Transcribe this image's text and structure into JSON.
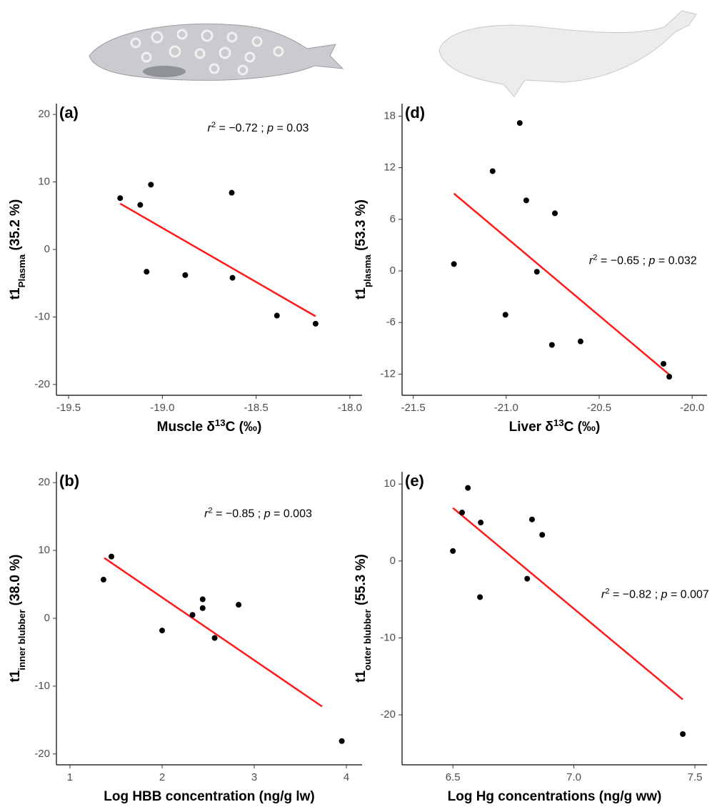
{
  "chart_data": [
    {
      "type": "scatter",
      "panel_label": "(a)",
      "x": [
        -19.225,
        -19.118,
        -19.061,
        -19.084,
        -18.878,
        -18.63,
        -18.626,
        -18.389,
        -18.183
      ],
      "series": [
        {
          "color": "#000000",
          "values": [
            7.6,
            6.6,
            9.6,
            -3.3,
            -3.8,
            8.4,
            -4.2,
            -9.8,
            -11.0
          ]
        }
      ],
      "fit": {
        "x": [
          -19.225,
          -18.183
        ],
        "y": [
          6.8,
          -9.9
        ],
        "color": "#ff1a1a"
      },
      "xlim": [
        -19.565,
        -17.935
      ],
      "ylim": [
        -21.6,
        21.6
      ],
      "xticks": [
        -19.5,
        {
          "value": -19,
          "label": "-19.0"
        },
        -18.5,
        {
          "value": -18,
          "label": "-18.0"
        }
      ],
      "yticks": [
        -20,
        -10,
        0,
        10,
        20
      ],
      "x_label": [
        {
          "text": "Muscle δ",
          "style": "normal"
        },
        {
          "text": "13",
          "style": "super"
        },
        {
          "text": "C (‰)",
          "style": "normal"
        }
      ],
      "y_label": [
        {
          "text": "t1",
          "style": "normal"
        },
        {
          "text": "Plasma",
          "style": "sub"
        },
        {
          "text": " (35.2 %)",
          "style": "normal"
        }
      ],
      "annotation": [
        {
          "text": "r",
          "style": "italic"
        },
        {
          "text": "2",
          "style": "super"
        },
        {
          "text": " = −0.72  ;  ",
          "style": "normal"
        },
        {
          "text": "p",
          "style": "italic"
        },
        {
          "text": " = 0.03",
          "style": "normal"
        }
      ]
    },
    {
      "type": "scatter",
      "panel_label": "(d)",
      "x": [
        -21.281,
        -21.073,
        -20.927,
        -20.892,
        -20.738,
        -20.835,
        -21.004,
        -20.754,
        -20.6,
        -20.154,
        -20.123
      ],
      "series": [
        {
          "color": "#000000",
          "values": [
            0.8,
            11.6,
            17.2,
            8.2,
            6.7,
            -0.1,
            -5.1,
            -8.6,
            -8.2,
            -10.8,
            -12.3
          ]
        }
      ],
      "fit": {
        "x": [
          -21.281,
          -20.115
        ],
        "y": [
          9.0,
          -12.2
        ],
        "color": "#ff1a1a"
      },
      "xlim": [
        -21.56,
        -19.92
      ],
      "ylim": [
        -14.46,
        19.45
      ],
      "xticks": [
        -21.5,
        {
          "value": -21,
          "label": "-21.0"
        },
        -20.5,
        {
          "value": -20,
          "label": "-20.0"
        }
      ],
      "yticks": [
        -12,
        -6,
        0,
        6,
        12,
        18
      ],
      "x_label": [
        {
          "text": "Liver δ",
          "style": "normal"
        },
        {
          "text": "13",
          "style": "super"
        },
        {
          "text": "C (‰)",
          "style": "normal"
        }
      ],
      "y_label": [
        {
          "text": "t1",
          "style": "normal"
        },
        {
          "text": "plasma",
          "style": "sub"
        },
        {
          "text": " (53.3 %)",
          "style": "normal"
        }
      ],
      "annotation": [
        {
          "text": "r",
          "style": "italic"
        },
        {
          "text": "2",
          "style": "super"
        },
        {
          "text": " = −0.65  ;  ",
          "style": "normal"
        },
        {
          "text": "p",
          "style": "italic"
        },
        {
          "text": " = 0.032",
          "style": "normal"
        }
      ]
    },
    {
      "type": "scatter",
      "panel_label": "(b)",
      "x": [
        1.364,
        1.45,
        2.0,
        2.33,
        2.44,
        2.44,
        2.57,
        2.83,
        3.95
      ],
      "series": [
        {
          "color": "#000000",
          "values": [
            5.7,
            9.1,
            -1.8,
            0.5,
            2.8,
            1.5,
            -2.9,
            2.0,
            -18.1
          ]
        }
      ],
      "fit": {
        "x": [
          1.372,
          3.736
        ],
        "y": [
          8.9,
          -13.0
        ],
        "color": "#ff1a1a"
      },
      "xlim": [
        0.853,
        4.17
      ],
      "ylim": [
        -21.6,
        21.6
      ],
      "xticks": [
        1,
        2,
        3,
        4
      ],
      "yticks": [
        -20,
        -10,
        0,
        10,
        20
      ],
      "x_label": [
        {
          "text": "Log HBB concentration (ng/g lw)",
          "style": "normal"
        }
      ],
      "y_label": [
        {
          "text": "t1",
          "style": "normal"
        },
        {
          "text": "inner blubber",
          "style": "sub"
        },
        {
          "text": " (38.0 %)",
          "style": "normal"
        }
      ],
      "annotation": [
        {
          "text": "r",
          "style": "italic"
        },
        {
          "text": "2",
          "style": "super"
        },
        {
          "text": " = −0.85  ;  ",
          "style": "normal"
        },
        {
          "text": "p",
          "style": "italic"
        },
        {
          "text": " = 0.003",
          "style": "normal"
        }
      ]
    },
    {
      "type": "scatter",
      "panel_label": "(e)",
      "x": [
        6.5,
        6.538,
        6.562,
        6.615,
        6.612,
        6.827,
        6.807,
        6.869,
        7.45
      ],
      "series": [
        {
          "color": "#000000",
          "values": [
            1.3,
            6.3,
            9.5,
            5.0,
            -4.7,
            5.4,
            -2.3,
            3.4,
            -22.5
          ]
        }
      ],
      "fit": {
        "x": [
          6.5,
          7.45
        ],
        "y": [
          6.9,
          -18.0
        ],
        "color": "#ff1a1a"
      },
      "xlim": [
        6.29,
        7.55
      ],
      "ylim": [
        -26.5,
        11.6
      ],
      "xticks": [
        6.5,
        {
          "value": 7,
          "label": "7.0"
        },
        7.5
      ],
      "yticks": [
        -20,
        -10,
        0,
        10
      ],
      "x_label": [
        {
          "text": "Log Hg concentrations (ng/g ww)",
          "style": "normal"
        }
      ],
      "y_label": [
        {
          "text": "t1",
          "style": "normal"
        },
        {
          "text": "outer blubber",
          "style": "sub"
        },
        {
          "text": " (55.3 %)",
          "style": "normal"
        }
      ],
      "annotation": [
        {
          "text": "r",
          "style": "italic"
        },
        {
          "text": "2",
          "style": "super"
        },
        {
          "text": " = −0.82  ;  ",
          "style": "normal"
        },
        {
          "text": "p",
          "style": "italic"
        },
        {
          "text": " = 0.007",
          "style": "normal"
        }
      ]
    }
  ]
}
